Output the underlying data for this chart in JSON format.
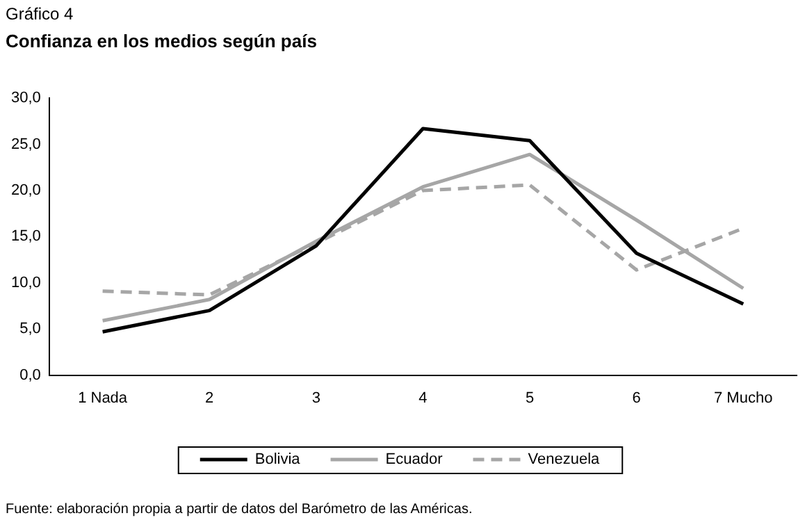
{
  "chart_data": {
    "type": "line",
    "subtitle": "Gráfico 4",
    "title": "Confianza en los medios según país",
    "categories": [
      "1 Nada",
      "2",
      "3",
      "4",
      "5",
      "6",
      "7 Mucho"
    ],
    "series": [
      {
        "name": "Bolivia",
        "color": "#000000",
        "line_style": "solid",
        "values": [
          4.7,
          7.0,
          14.0,
          26.7,
          25.4,
          13.2,
          7.7
        ]
      },
      {
        "name": "Ecuador",
        "color": "#a6a6a6",
        "line_style": "solid",
        "values": [
          5.9,
          8.2,
          14.5,
          20.4,
          23.9,
          16.8,
          9.4
        ]
      },
      {
        "name": "Venezuela",
        "color": "#a6a6a6",
        "line_style": "dashed",
        "values": [
          9.1,
          8.7,
          14.3,
          20.0,
          20.6,
          11.4,
          15.9
        ]
      }
    ],
    "ylim": [
      0,
      30
    ],
    "yticks": [
      {
        "value": 0,
        "label": "0,0"
      },
      {
        "value": 5,
        "label": "5,0"
      },
      {
        "value": 10,
        "label": "10,0"
      },
      {
        "value": 15,
        "label": "15,0"
      },
      {
        "value": 20,
        "label": "20,0"
      },
      {
        "value": 25,
        "label": "25,0"
      },
      {
        "value": 30,
        "label": "30,0"
      }
    ],
    "grid": false,
    "legend": "bottom",
    "marker": "none",
    "annotations": [
      "Fuente: elaboración propia a partir de datos del Barómetro de las Américas."
    ]
  }
}
